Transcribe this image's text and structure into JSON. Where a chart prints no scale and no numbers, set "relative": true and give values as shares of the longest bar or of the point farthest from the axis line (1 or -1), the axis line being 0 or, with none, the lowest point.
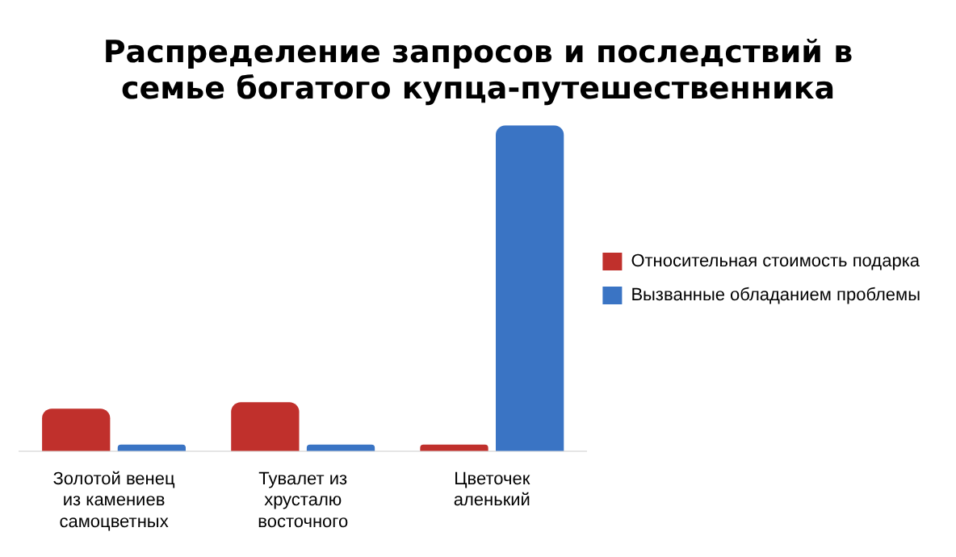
{
  "chart_data": {
    "type": "bar",
    "title": "Распределение запросов и последствий в семье богатого купца-путешественника",
    "categories": [
      "Золотой венец из камениев самоцветных",
      "Тувалет  из хрусталю восточного",
      "Цветочек аленький"
    ],
    "relative": true,
    "grid": false,
    "legend": "right",
    "series": [
      {
        "name": "Относительная стоимость подарка",
        "color": "#c0302c",
        "values": [
          0.13,
          0.15,
          0.02
        ]
      },
      {
        "name": "Вызванные обладанием проблемы",
        "color": "#3a74c4",
        "values": [
          0.02,
          0.02,
          1
        ]
      }
    ]
  }
}
